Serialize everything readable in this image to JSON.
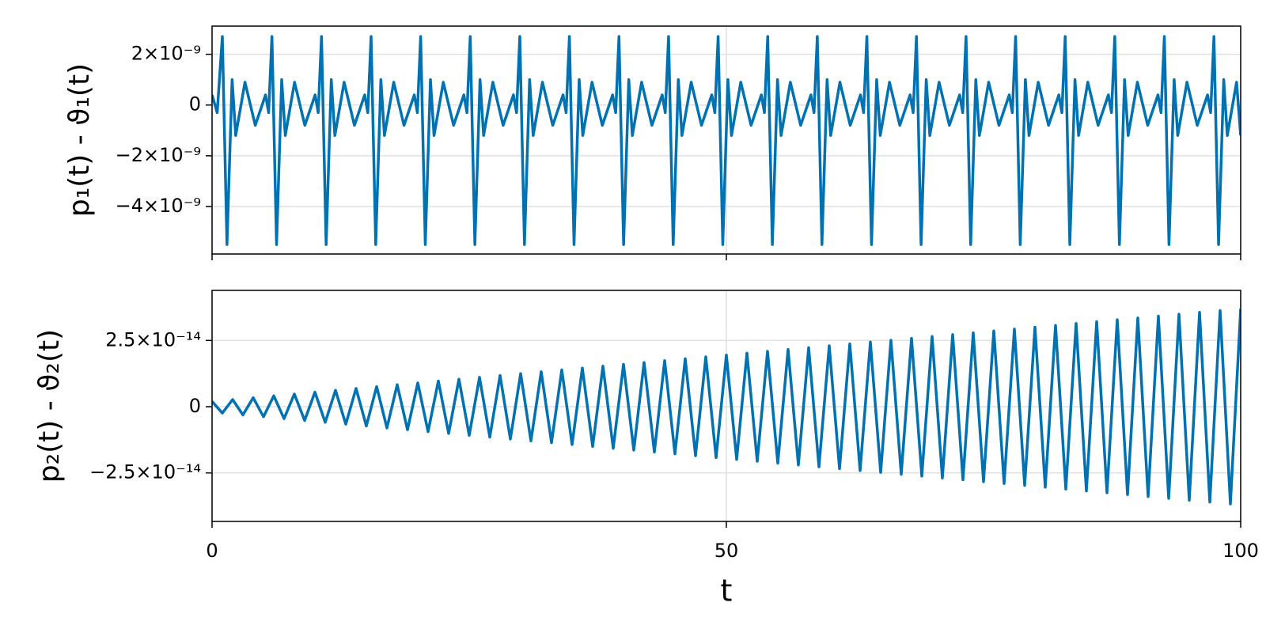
{
  "chart_data": [
    {
      "type": "line",
      "ylabel": "p₁(t) - ϑ₁(t)",
      "grid": true,
      "xlim": [
        0,
        100
      ],
      "xticks": [
        0,
        50,
        100
      ],
      "ylim": [
        -5.87e-09,
        3.11e-09
      ],
      "yticks": [
        {
          "value": -4e-09,
          "label": "−4×10⁻⁹"
        },
        {
          "value": -2e-09,
          "label": "−2×10⁻⁹"
        },
        0,
        {
          "value": 2e-09,
          "label": "2×10⁻⁹"
        }
      ],
      "series": [
        {
          "color": "#0072b2",
          "x": [
            0,
            0.5,
            1,
            1.45,
            1.95,
            2.3,
            3.2,
            4.2,
            5.2,
            5.5,
            5.82,
            6.27,
            6.77,
            7.12,
            8.02,
            9.02,
            10.02,
            10.32,
            10.64,
            11.09,
            11.59,
            11.94,
            12.84,
            13.84,
            14.84,
            15.14,
            15.46,
            15.91,
            16.41,
            16.76,
            17.66,
            18.66,
            19.66,
            19.96,
            20.28,
            20.73,
            21.23,
            21.58,
            22.48,
            23.48,
            24.48,
            24.78,
            25.1,
            25.55,
            26.05,
            26.4,
            27.3,
            28.3,
            29.3,
            29.6,
            29.92,
            30.37,
            30.87,
            31.22,
            32.12,
            33.12,
            34.12,
            34.42,
            34.74,
            35.19,
            35.69,
            36.04,
            36.94,
            37.94,
            38.94,
            39.24,
            39.56,
            40.01,
            40.51,
            40.86,
            41.76,
            42.76,
            43.76,
            44.06,
            44.38,
            44.83,
            45.33,
            45.68,
            46.58,
            47.58,
            48.58,
            48.88,
            49.2,
            49.65,
            50.15,
            50.5,
            51.4,
            52.4,
            53.4,
            53.7,
            54.02,
            54.47,
            54.97,
            55.32,
            56.22,
            57.22,
            58.22,
            58.52,
            58.84,
            59.29,
            59.79,
            60.14,
            61.04,
            62.04,
            63.04,
            63.34,
            63.66,
            64.11,
            64.61,
            64.96,
            65.86,
            66.86,
            67.86,
            68.16,
            68.48,
            68.93,
            69.43,
            69.78,
            70.68,
            71.68,
            72.68,
            72.98,
            73.3,
            73.75,
            74.25,
            74.6,
            75.5,
            76.5,
            77.5,
            77.8,
            78.12,
            78.57,
            79.07,
            79.42,
            80.32,
            81.32,
            82.32,
            82.62,
            82.94,
            83.39,
            83.89,
            84.24,
            85.14,
            86.14,
            87.14,
            87.44,
            87.76,
            88.21,
            88.71,
            89.06,
            89.96,
            90.96,
            91.96,
            92.26,
            92.58,
            93.03,
            93.53,
            93.88,
            94.78,
            95.78,
            96.78,
            97.08,
            97.4,
            97.85,
            98.35,
            98.7,
            99.6,
            100
          ],
          "values": [
            4e-10,
            -3e-10,
            2.7e-09,
            -5.5e-09,
            1e-09,
            -1.2e-09,
            9e-10,
            -8e-10,
            4e-10,
            -3e-10,
            2.7e-09,
            -5.5e-09,
            1e-09,
            -1.2e-09,
            9e-10,
            -8e-10,
            4e-10,
            -3e-10,
            2.7e-09,
            -5.5e-09,
            1e-09,
            -1.2e-09,
            9e-10,
            -8e-10,
            4e-10,
            -3e-10,
            2.7e-09,
            -5.5e-09,
            1e-09,
            -1.2e-09,
            9e-10,
            -8e-10,
            4e-10,
            -3e-10,
            2.7e-09,
            -5.5e-09,
            1e-09,
            -1.2e-09,
            9e-10,
            -8e-10,
            4e-10,
            -3e-10,
            2.7e-09,
            -5.5e-09,
            1e-09,
            -1.2e-09,
            9e-10,
            -8e-10,
            4e-10,
            -3e-10,
            2.7e-09,
            -5.5e-09,
            1e-09,
            -1.2e-09,
            9e-10,
            -8e-10,
            4e-10,
            -3e-10,
            2.7e-09,
            -5.5e-09,
            1e-09,
            -1.2e-09,
            9e-10,
            -8e-10,
            4e-10,
            -3e-10,
            2.7e-09,
            -5.5e-09,
            1e-09,
            -1.2e-09,
            9e-10,
            -8e-10,
            4e-10,
            -3e-10,
            2.7e-09,
            -5.5e-09,
            1e-09,
            -1.2e-09,
            9e-10,
            -8e-10,
            4e-10,
            -3e-10,
            2.7e-09,
            -5.5e-09,
            1e-09,
            -1.2e-09,
            9e-10,
            -8e-10,
            4e-10,
            -3e-10,
            2.7e-09,
            -5.5e-09,
            1e-09,
            -1.2e-09,
            9e-10,
            -8e-10,
            4e-10,
            -3e-10,
            2.7e-09,
            -5.5e-09,
            1e-09,
            -1.2e-09,
            9e-10,
            -8e-10,
            4e-10,
            -3e-10,
            2.7e-09,
            -5.5e-09,
            1e-09,
            -1.2e-09,
            9e-10,
            -8e-10,
            4e-10,
            -3e-10,
            2.7e-09,
            -5.5e-09,
            1e-09,
            -1.2e-09,
            9e-10,
            -8e-10,
            4e-10,
            -3e-10,
            2.7e-09,
            -5.5e-09,
            1e-09,
            -1.2e-09,
            9e-10,
            -8e-10,
            4e-10,
            -3e-10,
            2.7e-09,
            -5.5e-09,
            1e-09,
            -1.2e-09,
            9e-10,
            -8e-10,
            4e-10,
            -3e-10,
            2.7e-09,
            -5.5e-09,
            1e-09,
            -1.2e-09,
            9e-10,
            -8e-10,
            4e-10,
            -3e-10,
            2.7e-09,
            -5.5e-09,
            1e-09,
            -1.2e-09,
            9e-10,
            -8e-10,
            4e-10,
            -3e-10,
            2.7e-09,
            -5.5e-09,
            1e-09,
            -1.2e-09,
            9e-10,
            -8e-10,
            4e-10,
            -3e-10,
            2.7e-09,
            -5.5e-09,
            1e-09,
            -1.2e-09,
            9e-10,
            -1.2e-09
          ]
        }
      ]
    },
    {
      "type": "line",
      "ylabel": "p₂(t) - ϑ₂(t)",
      "xlabel": "t",
      "grid": true,
      "xlim": [
        0,
        100
      ],
      "xticks": [
        0,
        50,
        100
      ],
      "ylim": [
        -4.33e-14,
        4.39e-14
      ],
      "yticks": [
        {
          "value": -2.5e-14,
          "label": "−2.5×10⁻¹⁴"
        },
        0,
        {
          "value": 2.5e-14,
          "label": "2.5×10⁻¹⁴"
        }
      ],
      "series": [
        {
          "color": "#0072b2",
          "x": [
            0,
            1,
            2,
            3,
            4,
            5,
            6,
            7,
            8,
            9,
            10,
            11,
            12,
            13,
            14,
            15,
            16,
            17,
            18,
            19,
            20,
            21,
            22,
            23,
            24,
            25,
            26,
            27,
            28,
            29,
            30,
            31,
            32,
            33,
            34,
            35,
            36,
            37,
            38,
            39,
            40,
            41,
            42,
            43,
            44,
            45,
            46,
            47,
            48,
            49,
            50,
            51,
            52,
            53,
            54,
            55,
            56,
            57,
            58,
            59,
            60,
            61,
            62,
            63,
            64,
            65,
            66,
            67,
            68,
            69,
            70,
            71,
            72,
            73,
            74,
            75,
            76,
            77,
            78,
            79,
            80,
            81,
            82,
            83,
            84,
            85,
            86,
            87,
            88,
            89,
            90,
            91,
            92,
            93,
            94,
            95,
            96,
            97,
            98,
            99,
            100
          ],
          "values": [
            2e-15,
            -2.4e-15,
            2.7e-15,
            -3.1e-15,
            3.4e-15,
            -3.8e-15,
            4.1e-15,
            -4.5e-15,
            4.8e-15,
            -5.2e-15,
            5.5e-15,
            -5.9e-15,
            6.2e-15,
            -6.6e-15,
            6.9e-15,
            -7.3e-15,
            7.6e-15,
            -8e-15,
            8.3e-15,
            -8.7e-15,
            9e-15,
            -9.4e-15,
            9.7e-15,
            -1.01e-14,
            1.04e-14,
            -1.08e-14,
            1.11e-14,
            -1.15e-14,
            1.18e-14,
            -1.22e-14,
            1.25e-14,
            -1.29e-14,
            1.32e-14,
            -1.36e-14,
            1.39e-14,
            -1.43e-14,
            1.46e-14,
            -1.5e-14,
            1.53e-14,
            -1.57e-14,
            1.6e-14,
            -1.64e-14,
            1.67e-14,
            -1.71e-14,
            1.74e-14,
            -1.78e-14,
            1.81e-14,
            -1.85e-14,
            1.88e-14,
            -1.92e-14,
            1.95e-14,
            -1.99e-14,
            2.02e-14,
            -2.06e-14,
            2.09e-14,
            -2.13e-14,
            2.16e-14,
            -2.2e-14,
            2.23e-14,
            -2.27e-14,
            2.3e-14,
            -2.34e-14,
            2.37e-14,
            -2.41e-14,
            2.44e-14,
            -2.48e-14,
            2.51e-14,
            -2.55e-14,
            2.58e-14,
            -2.62e-14,
            2.65e-14,
            -2.69e-14,
            2.72e-14,
            -2.76e-14,
            2.79e-14,
            -2.83e-14,
            2.86e-14,
            -2.9e-14,
            2.93e-14,
            -2.97e-14,
            3e-14,
            -3.04e-14,
            3.07e-14,
            -3.11e-14,
            3.14e-14,
            -3.18e-14,
            3.21e-14,
            -3.25e-14,
            3.28e-14,
            -3.32e-14,
            3.35e-14,
            -3.39e-14,
            3.42e-14,
            -3.46e-14,
            3.49e-14,
            -3.53e-14,
            3.56e-14,
            -3.6e-14,
            3.63e-14,
            -3.67e-14,
            3.7e-14
          ]
        }
      ]
    }
  ]
}
